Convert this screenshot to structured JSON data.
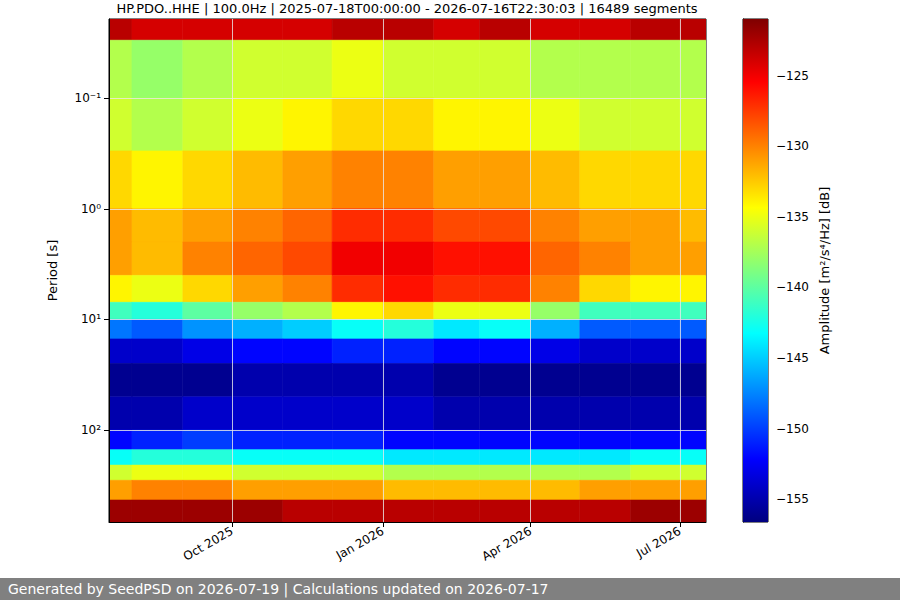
{
  "chart_data": {
    "type": "heatmap",
    "title": "HP.PDO..HHE | 100.0Hz | 2025-07-18T00:00:00 - 2026-07-16T22:30:03 | 16489 segments",
    "footer": "Generated by SeedPSD on 2026-07-19 | Calculations updated on 2026-07-17",
    "y_label": "Period [s]",
    "log": "y",
    "grid": true,
    "xlim": [
      "2025-07-18T00:00:00",
      "2026-07-16T22:30:03"
    ],
    "xticks": [
      {
        "value": "2025-10",
        "label": "Oct 2025"
      },
      {
        "value": "2026-01",
        "label": "Jan 2026"
      },
      {
        "value": "2026-04",
        "label": "Apr 2026"
      },
      {
        "value": "2026-07",
        "label": "Jul 2026"
      }
    ],
    "ylim": [
      0.0193,
      676
    ],
    "yticks": [
      {
        "value": 0.1,
        "label": "10⁻¹"
      },
      {
        "value": 1,
        "label": "10⁰"
      },
      {
        "value": 10,
        "label": "10¹"
      },
      {
        "value": 100,
        "label": "10²"
      }
    ],
    "x": [
      "2025-07",
      "2025-08",
      "2025-09",
      "2025-10",
      "2025-11",
      "2025-12",
      "2026-01",
      "2026-02",
      "2026-03",
      "2026-04",
      "2026-05",
      "2026-06",
      "2026-07"
    ],
    "period_edges": [
      0.0193,
      0.03,
      0.1,
      0.3,
      1,
      2,
      4,
      7,
      10,
      15,
      25,
      50,
      100,
      150,
      207,
      284,
      428,
      676
    ],
    "cells": [
      [
        -123,
        -124,
        -124,
        -124,
        -124,
        -123,
        -123,
        -124,
        -123,
        -124,
        -124,
        -123,
        -123
      ],
      [
        -137,
        -138,
        -137,
        -136,
        -136,
        -135,
        -136,
        -136,
        -136,
        -137,
        -137,
        -137,
        -137
      ],
      [
        -136,
        -137,
        -136,
        -135,
        -134,
        -133,
        -133,
        -134,
        -134,
        -135,
        -136,
        -136,
        -136
      ],
      [
        -133,
        -134,
        -133,
        -132,
        -131,
        -130,
        -130,
        -131,
        -131,
        -132,
        -133,
        -133,
        -133
      ],
      [
        -131,
        -132,
        -131,
        -130,
        -129,
        -127,
        -127,
        -128,
        -128,
        -130,
        -131,
        -131,
        -132
      ],
      [
        -131,
        -132,
        -130,
        -129,
        -128,
        -125,
        -125,
        -126,
        -126,
        -129,
        -130,
        -131,
        -131
      ],
      [
        -134,
        -135,
        -133,
        -131,
        -130,
        -127,
        -126,
        -127,
        -127,
        -130,
        -133,
        -134,
        -134
      ],
      [
        -141,
        -142,
        -140,
        -138,
        -137,
        -134,
        -133,
        -135,
        -135,
        -138,
        -141,
        -141,
        -141
      ],
      [
        -148,
        -149,
        -147,
        -146,
        -145,
        -143,
        -142,
        -144,
        -143,
        -146,
        -149,
        -149,
        -149
      ],
      [
        -154,
        -154,
        -153,
        -152,
        -152,
        -151,
        -151,
        -152,
        -152,
        -153,
        -154,
        -154,
        -154
      ],
      [
        -156,
        -156,
        -156,
        -155,
        -155,
        -155,
        -155,
        -156,
        -156,
        -156,
        -156,
        -156,
        -156
      ],
      [
        -155,
        -155,
        -154,
        -154,
        -154,
        -154,
        -154,
        -155,
        -155,
        -155,
        -155,
        -155,
        -155
      ],
      [
        -152,
        -151,
        -150,
        -151,
        -151,
        -151,
        -152,
        -152,
        -152,
        -152,
        -152,
        -152,
        -152
      ],
      [
        -143,
        -142,
        -142,
        -143,
        -143,
        -143,
        -144,
        -144,
        -144,
        -144,
        -144,
        -143,
        -143
      ],
      [
        -136,
        -135,
        -135,
        -136,
        -136,
        -136,
        -137,
        -137,
        -137,
        -137,
        -137,
        -136,
        -136
      ],
      [
        -131,
        -130,
        -130,
        -131,
        -131,
        -131,
        -132,
        -132,
        -132,
        -132,
        -131,
        -131,
        -131
      ],
      [
        -122,
        -122,
        -122,
        -122,
        -123,
        -123,
        -123,
        -123,
        -123,
        -123,
        -123,
        -122,
        -122
      ]
    ],
    "colorbar": {
      "label": "Amplitude [m²/s⁴/Hz] [dB]",
      "range": [
        -156.6,
        -121
      ],
      "ticks": [
        {
          "value": -125,
          "label": "−125"
        },
        {
          "value": -130,
          "label": "−130"
        },
        {
          "value": -135,
          "label": "−135"
        },
        {
          "value": -140,
          "label": "−140"
        },
        {
          "value": -145,
          "label": "−145"
        },
        {
          "value": -150,
          "label": "−150"
        },
        {
          "value": -155,
          "label": "−155"
        }
      ]
    }
  }
}
